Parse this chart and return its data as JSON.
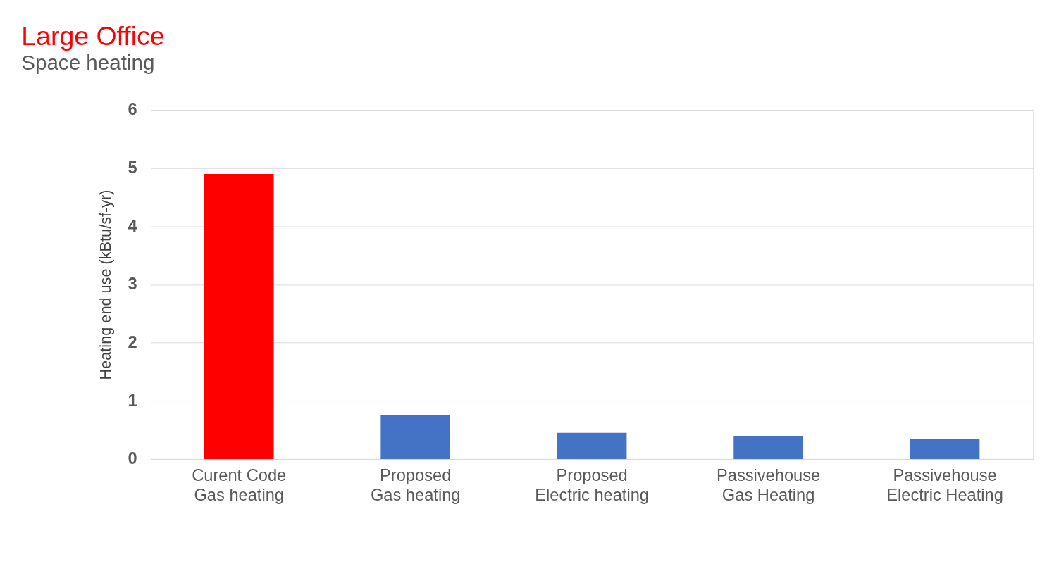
{
  "chart_data": {
    "type": "bar",
    "title": "Large Office",
    "subtitle": "Space heating",
    "ylabel": "Heating end use (kBtu/sf-yr)",
    "categories": [
      "Curent Code\nGas heating",
      "Proposed\nGas heating",
      "Proposed\nElectric heating",
      "Passivehouse\nGas Heating",
      "Passivehouse\nElectric Heating"
    ],
    "values": [
      4.9,
      0.75,
      0.45,
      0.4,
      0.34
    ],
    "colors": [
      "#ff0000",
      "#4472c4",
      "#4472c4",
      "#4472c4",
      "#4472c4"
    ],
    "ylim": [
      0,
      6
    ],
    "yticks": [
      0,
      1,
      2,
      3,
      4,
      5,
      6
    ],
    "grid": "y"
  }
}
